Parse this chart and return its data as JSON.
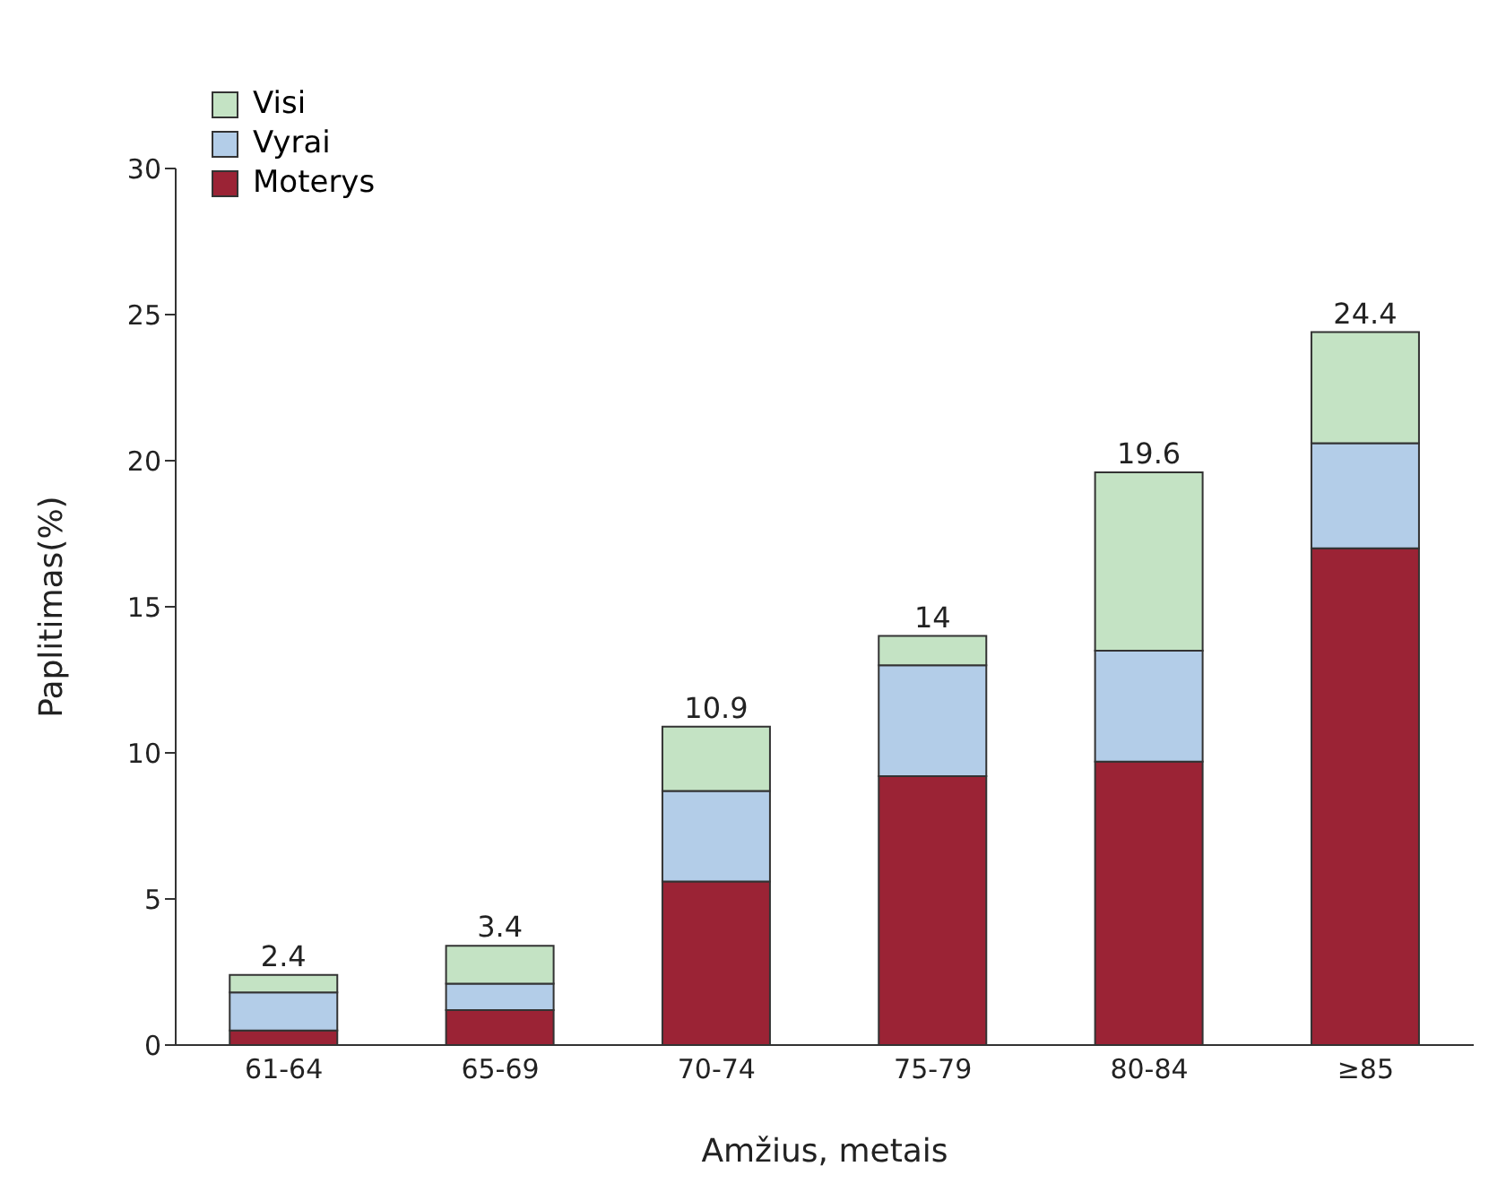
{
  "chart_data": {
    "type": "bar",
    "stacked": true,
    "xlabel": "Amžius, metais",
    "ylabel": "Paplitimas(%)",
    "categories": [
      "61-64",
      "65-69",
      "70-74",
      "75-79",
      "80-84",
      "≥85"
    ],
    "series": [
      {
        "name": "Moterys",
        "color": "#9b2335",
        "values": [
          0.5,
          1.2,
          5.6,
          9.2,
          9.7,
          17.0
        ]
      },
      {
        "name": "Vyrai",
        "color": "#b3cde8",
        "values": [
          1.3,
          0.9,
          3.1,
          3.8,
          3.8,
          3.6
        ]
      },
      {
        "name": "Visi",
        "color": "#c4e3c4",
        "values": [
          0.6,
          1.3,
          2.2,
          1.0,
          6.1,
          3.8
        ]
      }
    ],
    "totals": [
      "2.4",
      "3.4",
      "10.9",
      "14",
      "19.6",
      "24.4"
    ],
    "ylim": [
      0,
      30
    ],
    "yticks": [
      0,
      5,
      10,
      15,
      20,
      25,
      30
    ],
    "grid": false,
    "legend": "top left"
  }
}
